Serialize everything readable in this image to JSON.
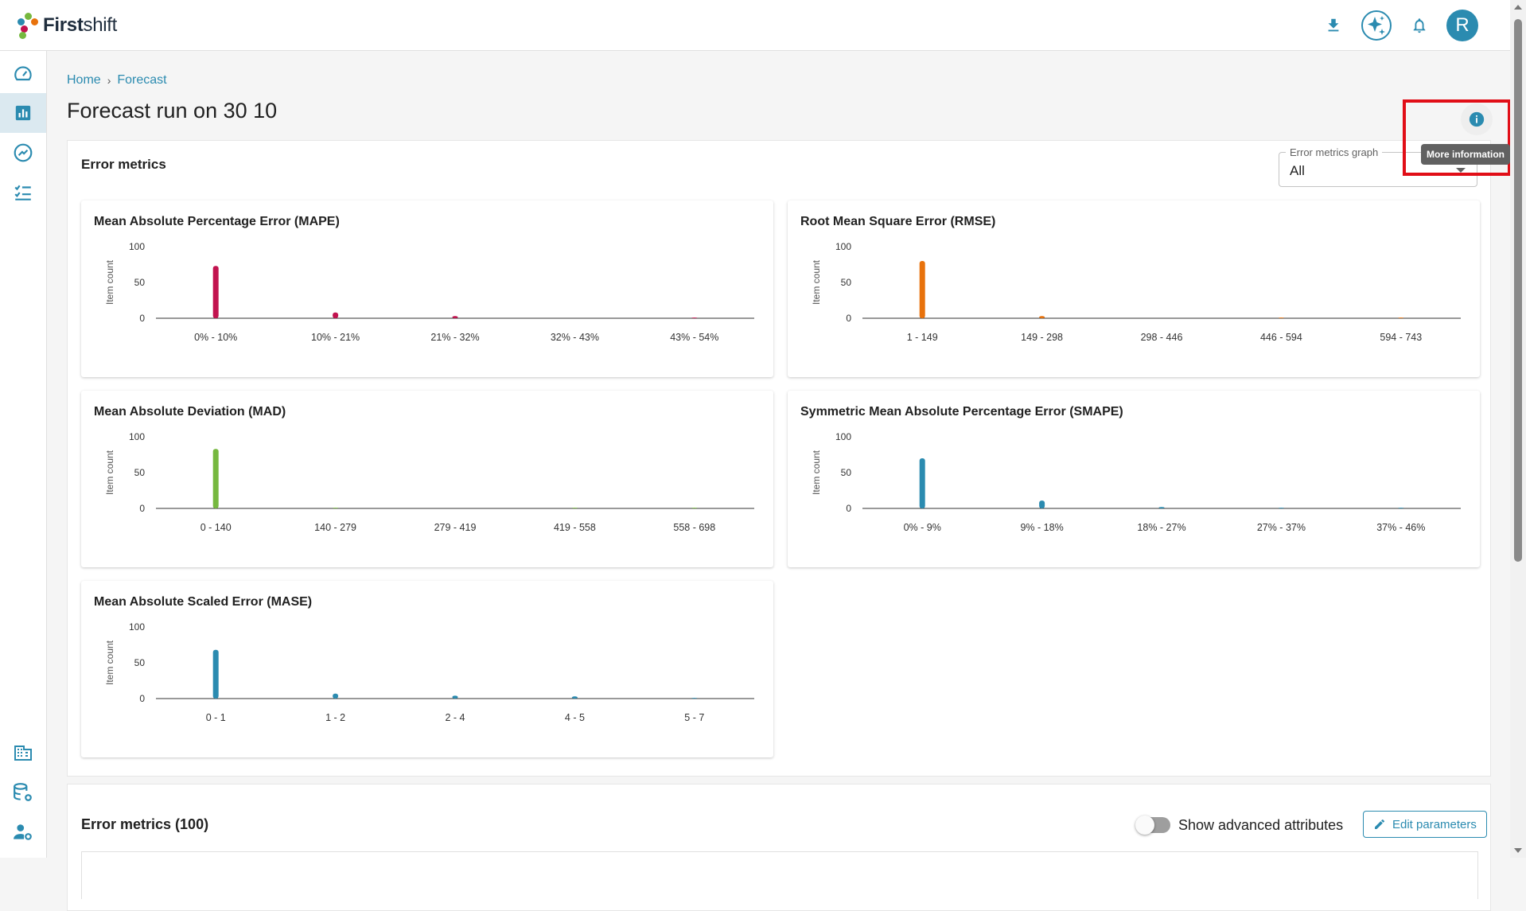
{
  "app": {
    "brand_bold": "First",
    "brand_light": "shift",
    "avatar_letter": "R"
  },
  "breadcrumb": {
    "home": "Home",
    "separator": "›",
    "current": "Forecast"
  },
  "page_title": "Forecast run on 30 10",
  "tooltip": "More information",
  "panel": {
    "title": "Error metrics",
    "select_label": "Error metrics graph",
    "select_value": "All"
  },
  "chart_data": [
    {
      "type": "bar",
      "title": "Mean Absolute Percentage Error (MAPE)",
      "ylabel": "Item count",
      "ylim": [
        0,
        100
      ],
      "yticks": [
        "100",
        "50",
        "0"
      ],
      "categories": [
        "0% - 10%",
        "10% - 21%",
        "21% - 32%",
        "32% - 43%",
        "43% - 54%"
      ],
      "values": [
        73,
        8,
        3,
        0,
        1
      ],
      "color": "#c2134f"
    },
    {
      "type": "bar",
      "title": "Root Mean Square Error (RMSE)",
      "ylabel": "Item count",
      "ylim": [
        0,
        100
      ],
      "yticks": [
        "100",
        "50",
        "0"
      ],
      "categories": [
        "1 - 149",
        "149 - 298",
        "298 - 446",
        "446 - 594",
        "594 - 743"
      ],
      "values": [
        80,
        3,
        0,
        1,
        1
      ],
      "color": "#e8720c"
    },
    {
      "type": "bar",
      "title": "Mean Absolute Deviation (MAD)",
      "ylabel": "Item count",
      "ylim": [
        0,
        100
      ],
      "yticks": [
        "100",
        "50",
        "0"
      ],
      "categories": [
        "0 - 140",
        "140 - 279",
        "279 - 419",
        "419 - 558",
        "558 - 698"
      ],
      "values": [
        83,
        1,
        0,
        1,
        1
      ],
      "color": "#76b83f"
    },
    {
      "type": "bar",
      "title": "Symmetric Mean Absolute Percentage Error (SMAPE)",
      "ylabel": "Item count",
      "ylim": [
        0,
        100
      ],
      "yticks": [
        "100",
        "50",
        "0"
      ],
      "categories": [
        "0% - 9%",
        "9% - 18%",
        "18% - 27%",
        "27% - 37%",
        "37% - 46%"
      ],
      "values": [
        70,
        11,
        2,
        1,
        1
      ],
      "color": "#2b8bb0"
    },
    {
      "type": "bar",
      "title": "Mean Absolute Scaled Error (MASE)",
      "ylabel": "Item count",
      "ylim": [
        0,
        100
      ],
      "yticks": [
        "100",
        "50",
        "0"
      ],
      "categories": [
        "0 - 1",
        "1 - 2",
        "2 - 4",
        "4 - 5",
        "5 - 7"
      ],
      "values": [
        68,
        7,
        4,
        3,
        1
      ],
      "color": "#2b8bb0"
    }
  ],
  "bottom": {
    "title": "Error metrics (100)",
    "toggle_label": "Show advanced attributes",
    "edit_label": "Edit parameters"
  },
  "icons": {
    "download": "download-icon",
    "ai": "sparkle-icon",
    "bell": "bell-icon",
    "info": "info-icon"
  },
  "colors": {
    "accent": "#2b8bb0",
    "highlight": "#e10e17"
  }
}
